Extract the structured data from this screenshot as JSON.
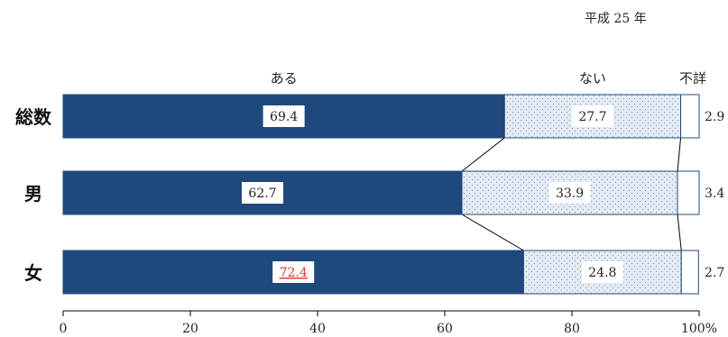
{
  "year_label": "平成 25 年",
  "chart_data": {
    "type": "bar",
    "stacked": true,
    "orientation": "horizontal",
    "categories": [
      "総数",
      "男",
      "女"
    ],
    "series": [
      {
        "name": "ある",
        "values": [
          69.4,
          62.7,
          72.4
        ],
        "color": "#1f497d"
      },
      {
        "name": "ない",
        "values": [
          27.7,
          33.9,
          24.8
        ],
        "color": "#dbe4f0",
        "pattern": "dots"
      },
      {
        "name": "不詳",
        "values": [
          2.9,
          3.4,
          2.7
        ],
        "color": "#ffffff"
      }
    ],
    "value_labels": [
      [
        "69.4",
        "27.7",
        "2.9"
      ],
      [
        "62.7",
        "33.9",
        "3.4"
      ],
      [
        "72.4",
        "24.8",
        "2.7"
      ]
    ],
    "highlight": {
      "row": 2,
      "series": 0,
      "color": "#e8322d"
    },
    "x_ticks": [
      0,
      20,
      40,
      60,
      80,
      100
    ],
    "x_tick_labels": [
      "0",
      "20",
      "40",
      "60",
      "80",
      "100%"
    ],
    "xlim": [
      0,
      100
    ],
    "legend_position": "top",
    "series_lines": true,
    "grid": false
  }
}
